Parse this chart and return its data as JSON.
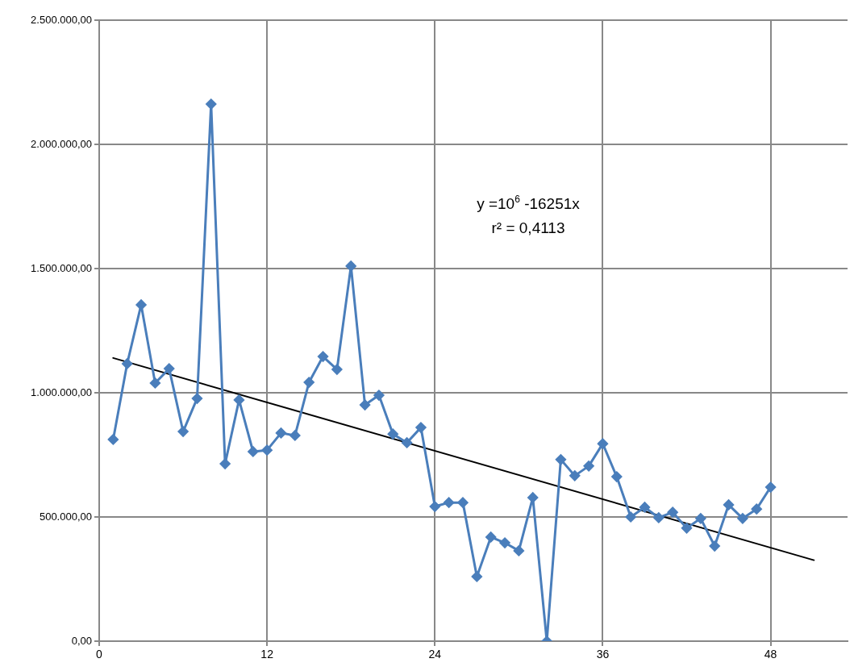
{
  "chart_data": {
    "type": "line",
    "x": [
      1,
      2,
      3,
      4,
      5,
      6,
      7,
      8,
      9,
      10,
      11,
      12,
      13,
      14,
      15,
      16,
      17,
      18,
      19,
      20,
      21,
      22,
      23,
      24,
      25,
      26,
      27,
      28,
      29,
      30,
      31,
      32,
      33,
      34,
      35,
      36,
      37,
      38,
      39,
      40,
      41,
      42,
      43,
      44,
      45,
      46,
      47,
      48
    ],
    "series": [
      {
        "color": "#4a7ebb",
        "marker": "diamond",
        "values": [
          812000,
          1117000,
          1354000,
          1039000,
          1097000,
          844000,
          977000,
          2162000,
          714000,
          971000,
          763000,
          769000,
          838000,
          828000,
          1042000,
          1146000,
          1094000,
          1510000,
          951000,
          990000,
          834000,
          799000,
          860000,
          542000,
          558000,
          558000,
          260000,
          419000,
          396000,
          364000,
          578000,
          0,
          731000,
          666000,
          705000,
          795000,
          662000,
          500000,
          539000,
          497000,
          519000,
          455000,
          494000,
          383000,
          549000,
          494000,
          532000,
          620000
        ]
      },
      {
        "color": "#000000",
        "marker": "none",
        "x": [
          1,
          51.1
        ],
        "values": [
          1140000,
          326000
        ]
      }
    ],
    "xlim": [
      0,
      53.5
    ],
    "xticks": [
      0,
      12,
      24,
      36,
      48
    ],
    "ylim": [
      0,
      2500000
    ],
    "yticks": [
      {
        "value": 0,
        "label": "0,00"
      },
      {
        "value": 500000,
        "label": "500.000,00"
      },
      {
        "value": 1000000,
        "label": "1.000.000,00"
      },
      {
        "value": 1500000,
        "label": "1.500.000,00"
      },
      {
        "value": 2000000,
        "label": "2.000.000,00"
      },
      {
        "value": 2500000,
        "label": "2.500.000,00"
      }
    ],
    "grid": true,
    "legend": false,
    "line_style": "solid",
    "annotations": [
      "y =10$^{6}$ -16251x",
      "r² = 0,4113"
    ]
  }
}
